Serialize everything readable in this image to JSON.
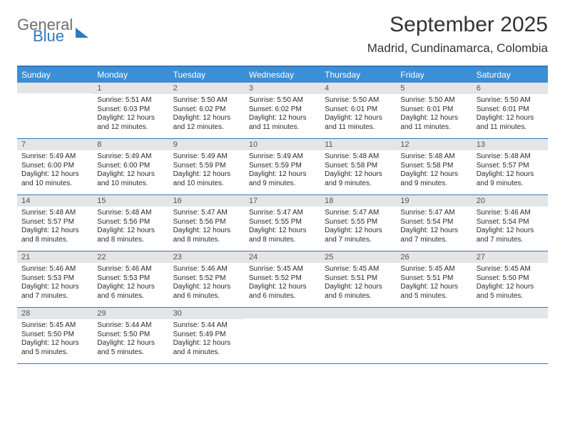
{
  "brand": {
    "part1": "General",
    "part2": "Blue"
  },
  "header": {
    "title": "September 2025",
    "location": "Madrid, Cundinamarca, Colombia"
  },
  "colors": {
    "accent": "#2f78c3",
    "header_bg": "#3b8fd6",
    "header_fg": "#ffffff",
    "datebar_bg": "#e4e5e7",
    "text": "#2b2b2b"
  },
  "dayNames": [
    "Sunday",
    "Monday",
    "Tuesday",
    "Wednesday",
    "Thursday",
    "Friday",
    "Saturday"
  ],
  "calendar": {
    "startOffset": 1,
    "daysInMonth": 30,
    "days": {
      "1": {
        "sunrise": "5:51 AM",
        "sunset": "6:03 PM",
        "daylight": "12 hours and 12 minutes."
      },
      "2": {
        "sunrise": "5:50 AM",
        "sunset": "6:02 PM",
        "daylight": "12 hours and 12 minutes."
      },
      "3": {
        "sunrise": "5:50 AM",
        "sunset": "6:02 PM",
        "daylight": "12 hours and 11 minutes."
      },
      "4": {
        "sunrise": "5:50 AM",
        "sunset": "6:01 PM",
        "daylight": "12 hours and 11 minutes."
      },
      "5": {
        "sunrise": "5:50 AM",
        "sunset": "6:01 PM",
        "daylight": "12 hours and 11 minutes."
      },
      "6": {
        "sunrise": "5:50 AM",
        "sunset": "6:01 PM",
        "daylight": "12 hours and 11 minutes."
      },
      "7": {
        "sunrise": "5:49 AM",
        "sunset": "6:00 PM",
        "daylight": "12 hours and 10 minutes."
      },
      "8": {
        "sunrise": "5:49 AM",
        "sunset": "6:00 PM",
        "daylight": "12 hours and 10 minutes."
      },
      "9": {
        "sunrise": "5:49 AM",
        "sunset": "5:59 PM",
        "daylight": "12 hours and 10 minutes."
      },
      "10": {
        "sunrise": "5:49 AM",
        "sunset": "5:59 PM",
        "daylight": "12 hours and 9 minutes."
      },
      "11": {
        "sunrise": "5:48 AM",
        "sunset": "5:58 PM",
        "daylight": "12 hours and 9 minutes."
      },
      "12": {
        "sunrise": "5:48 AM",
        "sunset": "5:58 PM",
        "daylight": "12 hours and 9 minutes."
      },
      "13": {
        "sunrise": "5:48 AM",
        "sunset": "5:57 PM",
        "daylight": "12 hours and 9 minutes."
      },
      "14": {
        "sunrise": "5:48 AM",
        "sunset": "5:57 PM",
        "daylight": "12 hours and 8 minutes."
      },
      "15": {
        "sunrise": "5:48 AM",
        "sunset": "5:56 PM",
        "daylight": "12 hours and 8 minutes."
      },
      "16": {
        "sunrise": "5:47 AM",
        "sunset": "5:56 PM",
        "daylight": "12 hours and 8 minutes."
      },
      "17": {
        "sunrise": "5:47 AM",
        "sunset": "5:55 PM",
        "daylight": "12 hours and 8 minutes."
      },
      "18": {
        "sunrise": "5:47 AM",
        "sunset": "5:55 PM",
        "daylight": "12 hours and 7 minutes."
      },
      "19": {
        "sunrise": "5:47 AM",
        "sunset": "5:54 PM",
        "daylight": "12 hours and 7 minutes."
      },
      "20": {
        "sunrise": "5:46 AM",
        "sunset": "5:54 PM",
        "daylight": "12 hours and 7 minutes."
      },
      "21": {
        "sunrise": "5:46 AM",
        "sunset": "5:53 PM",
        "daylight": "12 hours and 7 minutes."
      },
      "22": {
        "sunrise": "5:46 AM",
        "sunset": "5:53 PM",
        "daylight": "12 hours and 6 minutes."
      },
      "23": {
        "sunrise": "5:46 AM",
        "sunset": "5:52 PM",
        "daylight": "12 hours and 6 minutes."
      },
      "24": {
        "sunrise": "5:45 AM",
        "sunset": "5:52 PM",
        "daylight": "12 hours and 6 minutes."
      },
      "25": {
        "sunrise": "5:45 AM",
        "sunset": "5:51 PM",
        "daylight": "12 hours and 6 minutes."
      },
      "26": {
        "sunrise": "5:45 AM",
        "sunset": "5:51 PM",
        "daylight": "12 hours and 5 minutes."
      },
      "27": {
        "sunrise": "5:45 AM",
        "sunset": "5:50 PM",
        "daylight": "12 hours and 5 minutes."
      },
      "28": {
        "sunrise": "5:45 AM",
        "sunset": "5:50 PM",
        "daylight": "12 hours and 5 minutes."
      },
      "29": {
        "sunrise": "5:44 AM",
        "sunset": "5:50 PM",
        "daylight": "12 hours and 5 minutes."
      },
      "30": {
        "sunrise": "5:44 AM",
        "sunset": "5:49 PM",
        "daylight": "12 hours and 4 minutes."
      }
    }
  },
  "labels": {
    "sunrise": "Sunrise:",
    "sunset": "Sunset:",
    "daylight": "Daylight:"
  }
}
